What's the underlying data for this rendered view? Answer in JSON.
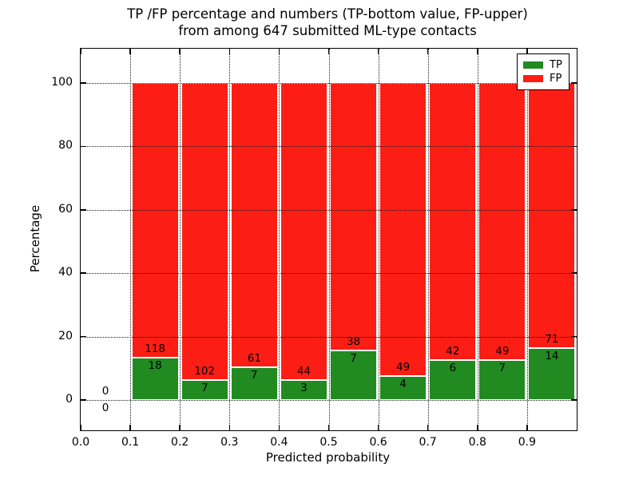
{
  "chart_data": {
    "type": "bar",
    "stacked": true,
    "title_line1": "TP /FP percentage and numbers (TP-bottom value, FP-upper)",
    "title_line2": "from among 647 submitted ML-type contacts",
    "xlabel": "Predicted probability",
    "ylabel": "Percentage",
    "total_contacts": 647,
    "xlim": [
      0.0,
      1.0
    ],
    "ylim": [
      -10,
      111
    ],
    "grid": "dotted, drawn above bars",
    "xticks": [
      {
        "value": 0.0,
        "label": "0.0"
      },
      {
        "value": 0.1,
        "label": "0.1"
      },
      {
        "value": 0.2,
        "label": "0.2"
      },
      {
        "value": 0.3,
        "label": "0.3"
      },
      {
        "value": 0.4,
        "label": "0.4"
      },
      {
        "value": 0.5,
        "label": "0.5"
      },
      {
        "value": 0.6,
        "label": "0.6"
      },
      {
        "value": 0.7,
        "label": "0.7"
      },
      {
        "value": 0.8,
        "label": "0.8"
      },
      {
        "value": 0.9,
        "label": "0.9"
      }
    ],
    "yticks": [
      {
        "value": 0,
        "label": "0"
      },
      {
        "value": 20,
        "label": "20"
      },
      {
        "value": 40,
        "label": "40"
      },
      {
        "value": 60,
        "label": "60"
      },
      {
        "value": 80,
        "label": "80"
      },
      {
        "value": 100,
        "label": "100"
      }
    ],
    "legend": {
      "position": "upper right",
      "entries": [
        {
          "label": "TP",
          "color": "#218a21"
        },
        {
          "label": "FP",
          "color": "#fc1e14"
        }
      ]
    },
    "bins": [
      {
        "range": [
          0.0,
          0.1
        ],
        "tp": 0,
        "fp": 0
      },
      {
        "range": [
          0.1,
          0.2
        ],
        "tp": 18,
        "fp": 118
      },
      {
        "range": [
          0.2,
          0.3
        ],
        "tp": 7,
        "fp": 102
      },
      {
        "range": [
          0.3,
          0.4
        ],
        "tp": 7,
        "fp": 61
      },
      {
        "range": [
          0.4,
          0.5
        ],
        "tp": 3,
        "fp": 44
      },
      {
        "range": [
          0.5,
          0.6
        ],
        "tp": 7,
        "fp": 38
      },
      {
        "range": [
          0.6,
          0.7
        ],
        "tp": 4,
        "fp": 49
      },
      {
        "range": [
          0.7,
          0.8
        ],
        "tp": 6,
        "fp": 42
      },
      {
        "range": [
          0.8,
          0.9
        ],
        "tp": 7,
        "fp": 49
      },
      {
        "range": [
          0.9,
          1.0
        ],
        "tp": 14,
        "fp": 71
      }
    ]
  }
}
